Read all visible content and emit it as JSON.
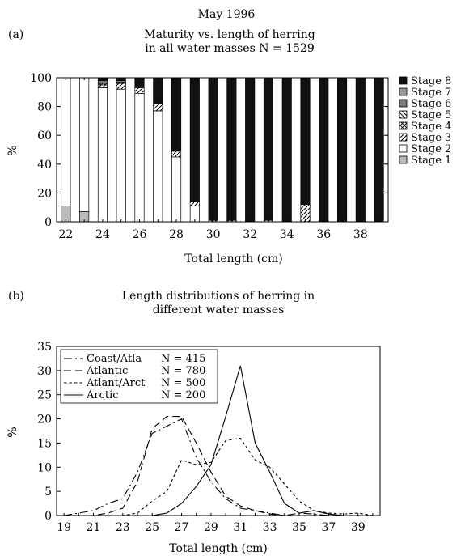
{
  "figure_title": "May 1996",
  "chart_data": [
    {
      "panel_label": "(a)",
      "type": "bar",
      "stacked": true,
      "title": "Maturity vs. length of herring",
      "subtitle": "in all water masses N = 1529",
      "xlabel": "Total length (cm)",
      "ylabel": "%",
      "ylim": [
        0,
        100
      ],
      "yticks": [
        0,
        20,
        40,
        60,
        80,
        100
      ],
      "xticks": [
        22,
        24,
        26,
        28,
        30,
        32,
        34,
        36,
        38
      ],
      "legend_position": "right",
      "categories": [
        22,
        23,
        24,
        25,
        26,
        27,
        28,
        29,
        30,
        31,
        32,
        33,
        34,
        35,
        36,
        37,
        38,
        39
      ],
      "series": [
        {
          "name": "Stage 1",
          "color": "#bbbbbb",
          "pattern": "solid",
          "values": [
            11,
            7,
            0,
            0,
            0,
            0,
            0,
            0,
            0,
            0,
            0,
            0,
            0,
            0,
            0,
            0,
            0,
            0
          ]
        },
        {
          "name": "Stage 2",
          "color": "#ffffff",
          "pattern": "solid",
          "values": [
            89,
            93,
            93,
            92,
            89,
            77,
            45,
            11,
            0,
            0,
            0,
            0,
            0,
            0,
            0,
            0,
            0,
            0
          ]
        },
        {
          "name": "Stage 3",
          "color": "#ffffff",
          "pattern": "diagonal",
          "values": [
            0,
            0,
            2,
            4,
            4,
            5,
            4,
            3,
            1,
            1,
            0,
            1,
            0,
            12,
            0,
            0,
            0,
            0
          ]
        },
        {
          "name": "Stage 4",
          "color": "#ffffff",
          "pattern": "cross",
          "values": [
            0,
            0,
            1,
            1,
            0,
            0,
            0,
            0,
            0,
            0,
            0,
            0,
            0,
            0,
            0,
            0,
            0,
            0
          ]
        },
        {
          "name": "Stage 5",
          "color": "#ffffff",
          "pattern": "backdiag",
          "values": [
            0,
            0,
            0,
            0,
            0,
            0,
            0,
            0,
            0,
            0,
            0,
            0,
            0,
            0,
            0,
            0,
            0,
            0
          ]
        },
        {
          "name": "Stage 6",
          "color": "#777777",
          "pattern": "solid",
          "values": [
            0,
            0,
            2,
            1,
            0,
            0,
            0,
            0,
            0,
            0,
            0,
            0,
            0,
            0,
            0,
            0,
            0,
            0
          ]
        },
        {
          "name": "Stage 7",
          "color": "#999999",
          "pattern": "solid",
          "values": [
            0,
            0,
            0,
            0,
            0,
            0,
            0,
            0,
            0,
            0,
            0,
            0,
            0,
            0,
            0,
            0,
            0,
            0
          ]
        },
        {
          "name": "Stage 8",
          "color": "#111111",
          "pattern": "solid",
          "values": [
            0,
            0,
            2,
            2,
            7,
            18,
            51,
            86,
            99,
            99,
            100,
            99,
            100,
            88,
            100,
            100,
            100,
            100
          ]
        }
      ]
    },
    {
      "panel_label": "(b)",
      "type": "line",
      "title": "Length distributions of herring in",
      "subtitle": "different water masses",
      "xlabel": "Total length (cm)",
      "ylabel": "%",
      "ylim": [
        0,
        35
      ],
      "xlim": [
        18.5,
        40.5
      ],
      "yticks": [
        0,
        5,
        10,
        15,
        20,
        25,
        30,
        35
      ],
      "xticks": [
        19,
        21,
        23,
        25,
        27,
        29,
        31,
        33,
        35,
        37,
        39
      ],
      "legend_position": "top-left",
      "x": [
        19,
        20,
        21,
        22,
        23,
        24,
        25,
        26,
        27,
        28,
        29,
        30,
        31,
        32,
        33,
        34,
        35,
        36,
        37,
        38,
        39,
        40
      ],
      "series": [
        {
          "name": "Coast/Atla",
          "n_label": "N = 415",
          "dash": "dashdot",
          "values": [
            0,
            0.5,
            1,
            2.5,
            3.5,
            9,
            17,
            18.5,
            20,
            12,
            7,
            3.5,
            1.5,
            1,
            0.5,
            0,
            0.5,
            0.3,
            0,
            0,
            0,
            0
          ]
        },
        {
          "name": "Atlantic",
          "n_label": "N = 780",
          "dash": "longdash",
          "values": [
            0,
            0,
            0,
            0.5,
            1.5,
            7,
            18,
            20.5,
            20.5,
            15,
            9,
            4,
            2,
            1,
            0.3,
            0,
            0,
            0,
            0,
            0,
            0,
            0
          ]
        },
        {
          "name": "Atlant/Arct",
          "n_label": "N = 500",
          "dash": "shortdash",
          "values": [
            0,
            0,
            0,
            0,
            0,
            0.5,
            3,
            5,
            11.5,
            10.5,
            11,
            15.5,
            16,
            11.5,
            10,
            6.5,
            3,
            1,
            0.5,
            0.3,
            0.5,
            0
          ]
        },
        {
          "name": "Arctic",
          "n_label": "N = 200",
          "dash": "solid",
          "values": [
            0,
            0,
            0,
            0,
            0,
            0,
            0,
            0.5,
            2.5,
            6,
            10.5,
            20.5,
            31,
            15,
            9,
            2.5,
            0.5,
            1,
            0.3,
            0,
            0,
            0
          ]
        }
      ]
    }
  ]
}
